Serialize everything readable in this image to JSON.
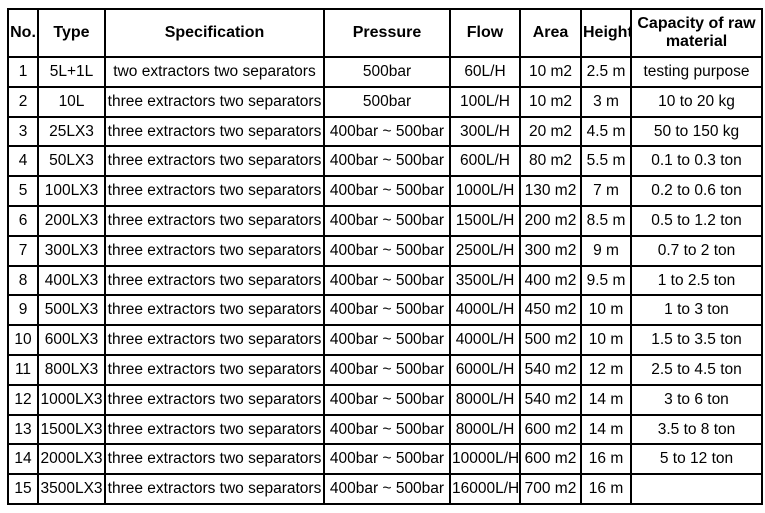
{
  "colors": {
    "background": "#ffffff",
    "border": "#000000",
    "text": "#000000"
  },
  "table": {
    "columns": [
      {
        "key": "no",
        "label": "No."
      },
      {
        "key": "type",
        "label": "Type"
      },
      {
        "key": "specification",
        "label": "Specification"
      },
      {
        "key": "pressure",
        "label": "Pressure"
      },
      {
        "key": "flow",
        "label": "Flow"
      },
      {
        "key": "area",
        "label": "Area"
      },
      {
        "key": "height",
        "label": "Height"
      },
      {
        "key": "capacity",
        "label": "Capacity of raw material"
      }
    ],
    "rows": [
      [
        "1",
        "5L+1L",
        "two extractors two separators",
        "500bar",
        "60L/H",
        "10 m2",
        "2.5 m",
        "testing purpose"
      ],
      [
        "2",
        "10L",
        "three extractors two separators",
        "500bar",
        "100L/H",
        "10 m2",
        "3 m",
        "10 to 20 kg"
      ],
      [
        "3",
        "25LX3",
        "three extractors two separators",
        "400bar ~ 500bar",
        "300L/H",
        "20 m2",
        "4.5 m",
        "50 to 150 kg"
      ],
      [
        "4",
        "50LX3",
        "three extractors two separators",
        "400bar ~ 500bar",
        "600L/H",
        "80 m2",
        "5.5 m",
        "0.1 to 0.3 ton"
      ],
      [
        "5",
        "100LX3",
        "three extractors two separators",
        "400bar ~ 500bar",
        "1000L/H",
        "130 m2",
        "7 m",
        "0.2 to 0.6 ton"
      ],
      [
        "6",
        "200LX3",
        "three extractors two separators",
        "400bar ~ 500bar",
        "1500L/H",
        "200 m2",
        "8.5 m",
        "0.5 to 1.2 ton"
      ],
      [
        "7",
        "300LX3",
        "three extractors two separators",
        "400bar ~ 500bar",
        "2500L/H",
        "300 m2",
        "9 m",
        "0.7 to 2 ton"
      ],
      [
        "8",
        "400LX3",
        "three extractors two separators",
        "400bar ~ 500bar",
        "3500L/H",
        "400 m2",
        "9.5 m",
        "1 to 2.5 ton"
      ],
      [
        "9",
        "500LX3",
        "three extractors two separators",
        "400bar ~ 500bar",
        "4000L/H",
        "450 m2",
        "10 m",
        "1 to 3 ton"
      ],
      [
        "10",
        "600LX3",
        "three extractors two separators",
        "400bar ~ 500bar",
        "4000L/H",
        "500 m2",
        "10 m",
        "1.5 to 3.5 ton"
      ],
      [
        "11",
        "800LX3",
        "three extractors two separators",
        "400bar ~ 500bar",
        "6000L/H",
        "540 m2",
        "12 m",
        "2.5 to 4.5 ton"
      ],
      [
        "12",
        "1000LX3",
        "three extractors two separators",
        "400bar ~ 500bar",
        "8000L/H",
        "540 m2",
        "14 m",
        "3 to 6 ton"
      ],
      [
        "13",
        "1500LX3",
        "three extractors two separators",
        "400bar ~ 500bar",
        "8000L/H",
        "600 m2",
        "14 m",
        "3.5 to 8 ton"
      ],
      [
        "14",
        "2000LX3",
        "three extractors two separators",
        "400bar ~ 500bar",
        "10000L/H",
        "600 m2",
        "16 m",
        "5 to 12 ton"
      ],
      [
        "15",
        "3500LX3",
        "three extractors two separators",
        "400bar ~ 500bar",
        "16000L/H",
        "700 m2",
        "16 m",
        ""
      ]
    ]
  }
}
